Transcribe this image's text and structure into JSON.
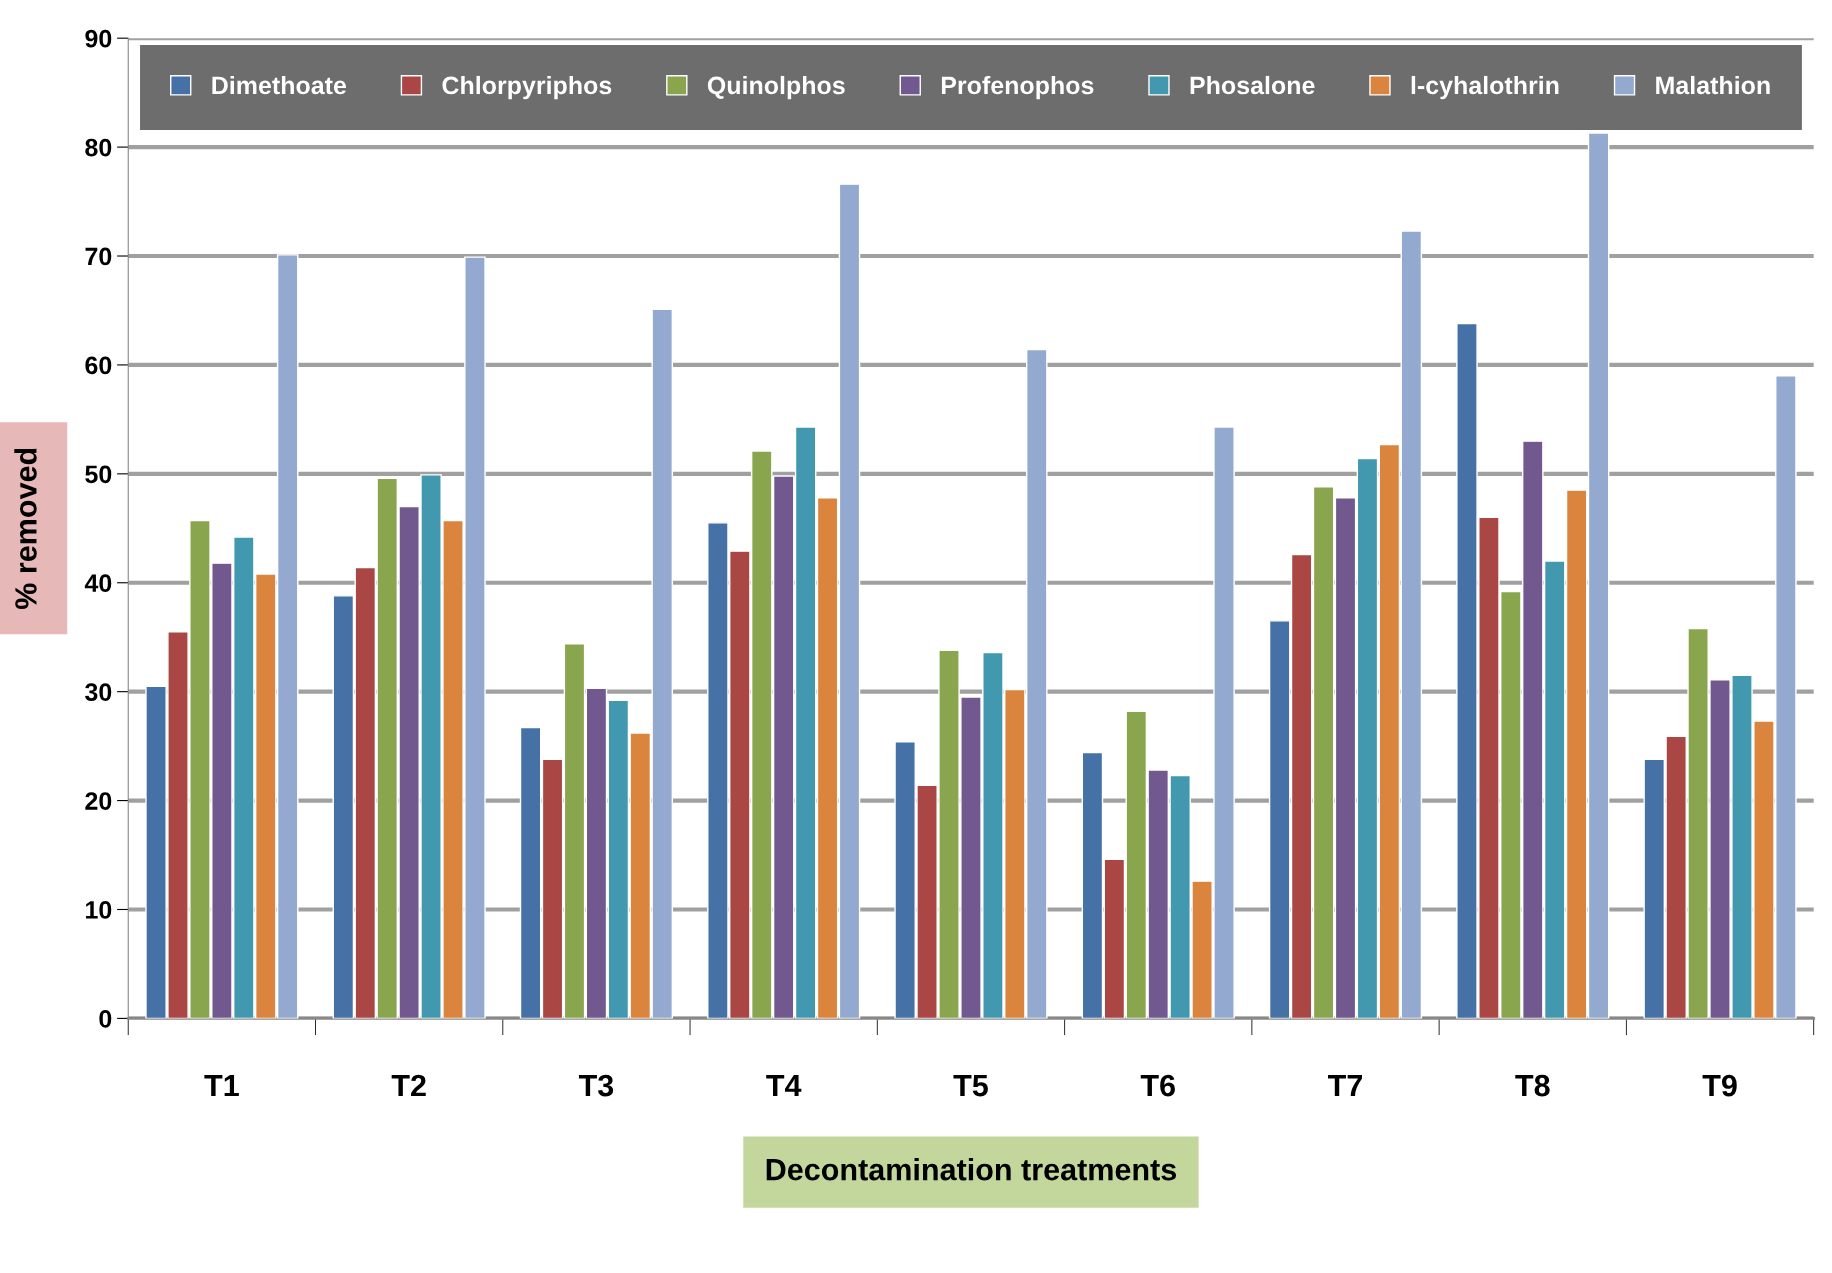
{
  "chart_data": {
    "type": "bar",
    "xlabel": "Decontamination treatments",
    "ylabel": "% removed",
    "categories": [
      "T1",
      "T2",
      "T3",
      "T4",
      "T5",
      "T6",
      "T7",
      "T8",
      "T9"
    ],
    "series": [
      {
        "name": "Dimethoate",
        "color": "#4571a7",
        "values": [
          30.5,
          38.8,
          26.7,
          45.5,
          25.4,
          24.4,
          36.5,
          63.8,
          23.8
        ]
      },
      {
        "name": "Chlorpyriphos",
        "color": "#aa4644",
        "values": [
          35.5,
          41.4,
          23.8,
          42.9,
          21.4,
          14.6,
          42.6,
          46.0,
          25.9
        ]
      },
      {
        "name": "Quinolphos",
        "color": "#89a54e",
        "values": [
          45.7,
          49.6,
          34.4,
          52.1,
          33.8,
          28.2,
          48.8,
          39.2,
          35.8
        ]
      },
      {
        "name": "Profenophos",
        "color": "#71588f",
        "values": [
          41.8,
          47.0,
          30.3,
          49.8,
          29.5,
          22.8,
          47.8,
          53.0,
          31.1
        ]
      },
      {
        "name": "Phosalone",
        "color": "#4198af",
        "values": [
          44.2,
          49.9,
          29.2,
          54.3,
          33.6,
          22.3,
          51.4,
          42.0,
          31.5
        ]
      },
      {
        "name": "l-cyhalothrin",
        "color": "#db843d",
        "values": [
          40.8,
          45.7,
          26.2,
          47.8,
          30.2,
          12.6,
          52.7,
          48.5,
          27.3
        ]
      },
      {
        "name": "Malathion",
        "color": "#93a9cf",
        "values": [
          70.1,
          69.9,
          65.1,
          76.6,
          61.4,
          54.3,
          72.3,
          81.3,
          59.0
        ]
      }
    ],
    "ylim": [
      0,
      90
    ],
    "yticks": [
      0,
      10,
      20,
      30,
      40,
      50,
      60,
      70,
      80,
      90
    ],
    "grid": "y",
    "legend": "top"
  }
}
